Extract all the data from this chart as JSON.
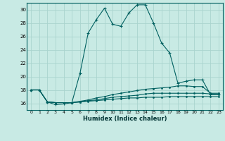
{
  "xlabel": "Humidex (Indice chaleur)",
  "bg_color": "#c8eae4",
  "grid_color": "#aad4ce",
  "line_color": "#006060",
  "xlim": [
    -0.5,
    23.5
  ],
  "ylim": [
    15.0,
    31.0
  ],
  "yticks": [
    16,
    18,
    20,
    22,
    24,
    26,
    28,
    30
  ],
  "xticks": [
    0,
    1,
    2,
    3,
    4,
    5,
    6,
    7,
    8,
    9,
    10,
    11,
    12,
    13,
    14,
    15,
    16,
    17,
    18,
    19,
    20,
    21,
    22,
    23
  ],
  "curve1_x": [
    0,
    1,
    2,
    3,
    4,
    5,
    6,
    7,
    8,
    9,
    10,
    11,
    12,
    13,
    14,
    15,
    16,
    17,
    18,
    19,
    20,
    21,
    22,
    23
  ],
  "curve1_y": [
    18.0,
    18.0,
    16.2,
    15.8,
    15.9,
    16.1,
    20.5,
    26.5,
    28.5,
    30.2,
    27.8,
    27.5,
    29.5,
    30.7,
    30.7,
    28.0,
    25.0,
    23.5,
    19.0,
    19.3,
    19.5,
    19.5,
    17.3,
    17.3
  ],
  "curve2_x": [
    0,
    1,
    2,
    3,
    4,
    5,
    6,
    7,
    8,
    9,
    10,
    11,
    12,
    13,
    14,
    15,
    16,
    17,
    18,
    19,
    20,
    21,
    22,
    23
  ],
  "curve2_y": [
    18.0,
    18.0,
    16.2,
    16.1,
    16.1,
    16.1,
    16.3,
    16.5,
    16.8,
    17.0,
    17.3,
    17.5,
    17.7,
    17.9,
    18.1,
    18.2,
    18.3,
    18.4,
    18.6,
    18.6,
    18.5,
    18.5,
    17.5,
    17.5
  ],
  "curve3_x": [
    0,
    1,
    2,
    3,
    4,
    5,
    6,
    7,
    8,
    9,
    10,
    11,
    12,
    13,
    14,
    15,
    16,
    17,
    18,
    19,
    20,
    21,
    22,
    23
  ],
  "curve3_y": [
    18.0,
    18.0,
    16.2,
    16.1,
    16.1,
    16.1,
    16.2,
    16.4,
    16.5,
    16.7,
    16.9,
    17.0,
    17.1,
    17.2,
    17.4,
    17.5,
    17.5,
    17.5,
    17.5,
    17.5,
    17.5,
    17.5,
    17.4,
    17.3
  ],
  "curve4_x": [
    0,
    1,
    2,
    3,
    4,
    5,
    6,
    7,
    8,
    9,
    10,
    11,
    12,
    13,
    14,
    15,
    16,
    17,
    18,
    19,
    20,
    21,
    22,
    23
  ],
  "curve4_y": [
    18.0,
    18.0,
    16.2,
    16.1,
    16.1,
    16.1,
    16.2,
    16.3,
    16.4,
    16.5,
    16.6,
    16.7,
    16.8,
    16.8,
    16.9,
    16.9,
    16.9,
    17.0,
    17.0,
    17.0,
    17.0,
    17.0,
    17.0,
    17.0
  ]
}
